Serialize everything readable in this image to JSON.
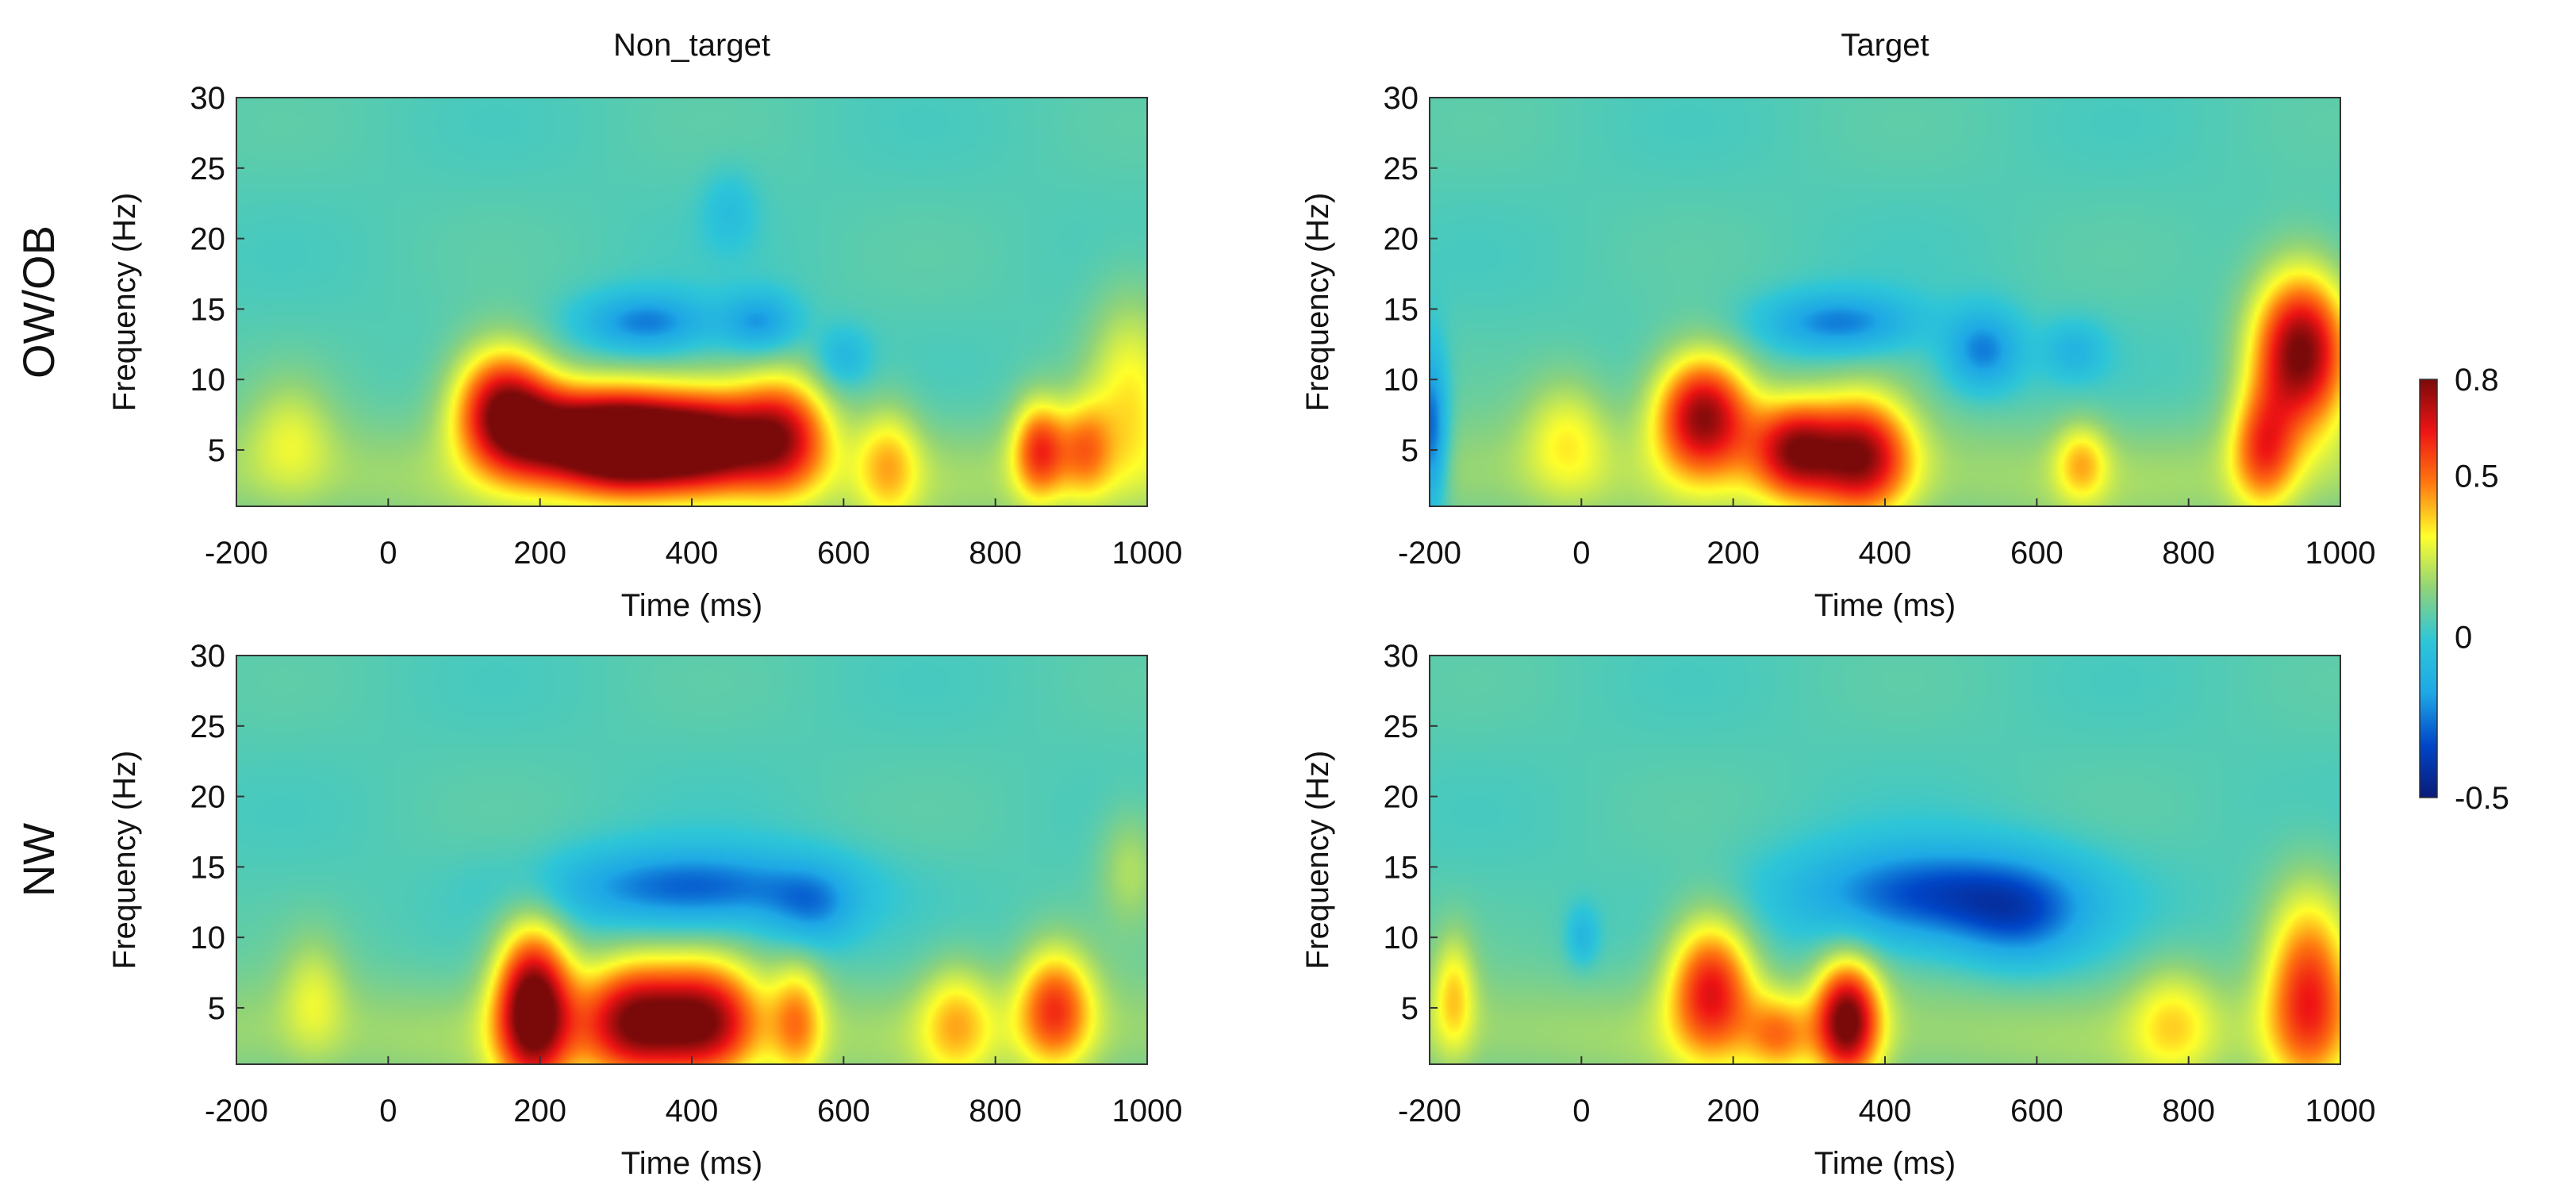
{
  "chart_data": {
    "type": "heatmap",
    "columns": [
      "Non_target",
      "Target"
    ],
    "rows": [
      "OW/OB",
      "NW"
    ],
    "xlabel": "Time (ms)",
    "ylabel": "Frequency (Hz)",
    "xlim": [
      -200,
      1000
    ],
    "ylim": [
      1,
      30
    ],
    "xticks": [
      -200,
      0,
      200,
      400,
      600,
      800,
      1000
    ],
    "yticks": [
      5,
      10,
      15,
      20,
      25,
      30
    ],
    "colorbar": {
      "ticks": [
        0.8,
        0.5,
        0,
        -0.5
      ],
      "range": [
        -0.5,
        0.8
      ],
      "colors": [
        "#0a1a78",
        "#0046c8",
        "#1ea8e6",
        "#2ec6d8",
        "#8fd37a",
        "#ffff2a",
        "#ff7a10",
        "#ef1414",
        "#7a0a0a"
      ]
    },
    "panels": [
      {
        "row": "OW/OB",
        "column": "Non_target",
        "blobs": [
          {
            "t": 150,
            "f": 8,
            "st": 45,
            "sf": 3,
            "a": 0.65
          },
          {
            "t": 230,
            "f": 6,
            "st": 60,
            "sf": 2.5,
            "a": 0.6
          },
          {
            "t": 320,
            "f": 5.5,
            "st": 55,
            "sf": 2.5,
            "a": 0.78
          },
          {
            "t": 420,
            "f": 5.5,
            "st": 55,
            "sf": 2.5,
            "a": 0.7
          },
          {
            "t": 520,
            "f": 6,
            "st": 45,
            "sf": 3,
            "a": 0.55
          },
          {
            "t": 340,
            "f": 14,
            "st": 60,
            "sf": 1.5,
            "a": -0.3
          },
          {
            "t": 490,
            "f": 14,
            "st": 35,
            "sf": 1.5,
            "a": -0.25
          },
          {
            "t": 600,
            "f": 11.5,
            "st": 25,
            "sf": 1.5,
            "a": -0.15
          },
          {
            "t": 450,
            "f": 22,
            "st": 25,
            "sf": 2,
            "a": -0.1
          },
          {
            "t": 860,
            "f": 5,
            "st": 25,
            "sf": 2.5,
            "a": 0.45
          },
          {
            "t": 920,
            "f": 5,
            "st": 25,
            "sf": 2.5,
            "a": 0.3
          },
          {
            "t": 660,
            "f": 4,
            "st": 30,
            "sf": 3,
            "a": 0.25
          },
          {
            "t": 980,
            "f": 9,
            "st": 40,
            "sf": 5,
            "a": 0.25
          },
          {
            "t": -130,
            "f": 6,
            "st": 40,
            "sf": 3,
            "a": 0.15
          }
        ]
      },
      {
        "row": "OW/OB",
        "column": "Target",
        "blobs": [
          {
            "t": 160,
            "f": 7.5,
            "st": 45,
            "sf": 3,
            "a": 0.7
          },
          {
            "t": 280,
            "f": 5,
            "st": 40,
            "sf": 2.5,
            "a": 0.58
          },
          {
            "t": 370,
            "f": 4.5,
            "st": 45,
            "sf": 3,
            "a": 0.62
          },
          {
            "t": 340,
            "f": 14,
            "st": 70,
            "sf": 1.5,
            "a": -0.3
          },
          {
            "t": 530,
            "f": 12,
            "st": 35,
            "sf": 2,
            "a": -0.3
          },
          {
            "t": 650,
            "f": 12,
            "st": 30,
            "sf": 1.5,
            "a": -0.15
          },
          {
            "t": 950,
            "f": 12,
            "st": 45,
            "sf": 4,
            "a": 0.75
          },
          {
            "t": 900,
            "f": 5,
            "st": 30,
            "sf": 3,
            "a": 0.4
          },
          {
            "t": -200,
            "f": 6,
            "st": 15,
            "sf": 4,
            "a": -0.4
          },
          {
            "t": 660,
            "f": 4,
            "st": 25,
            "sf": 2,
            "a": 0.25
          },
          {
            "t": -20,
            "f": 6,
            "st": 40,
            "sf": 3,
            "a": 0.2
          }
        ]
      },
      {
        "row": "NW",
        "column": "Non_target",
        "blobs": [
          {
            "t": 190,
            "f": 5,
            "st": 35,
            "sf": 4,
            "a": 0.8
          },
          {
            "t": 320,
            "f": 4,
            "st": 50,
            "sf": 3,
            "a": 0.6
          },
          {
            "t": 420,
            "f": 4,
            "st": 50,
            "sf": 3,
            "a": 0.6
          },
          {
            "t": 400,
            "f": 13.5,
            "st": 130,
            "sf": 2,
            "a": -0.35
          },
          {
            "t": 560,
            "f": 12,
            "st": 40,
            "sf": 2,
            "a": -0.2
          },
          {
            "t": 880,
            "f": 5,
            "st": 35,
            "sf": 3,
            "a": 0.45
          },
          {
            "t": 750,
            "f": 4,
            "st": 35,
            "sf": 3,
            "a": 0.25
          },
          {
            "t": 540,
            "f": 4,
            "st": 25,
            "sf": 3,
            "a": 0.3
          },
          {
            "t": -100,
            "f": 6,
            "st": 30,
            "sf": 3,
            "a": 0.15
          },
          {
            "t": 980,
            "f": 15,
            "st": 30,
            "sf": 3,
            "a": 0.15
          }
        ]
      },
      {
        "row": "NW",
        "column": "Target",
        "blobs": [
          {
            "t": 170,
            "f": 6.5,
            "st": 40,
            "sf": 3.5,
            "a": 0.55
          },
          {
            "t": 350,
            "f": 4,
            "st": 30,
            "sf": 3,
            "a": 0.7
          },
          {
            "t": 470,
            "f": 13,
            "st": 130,
            "sf": 2.5,
            "a": -0.4
          },
          {
            "t": 580,
            "f": 11,
            "st": 60,
            "sf": 2.5,
            "a": -0.2
          },
          {
            "t": 0,
            "f": 10,
            "st": 15,
            "sf": 1.5,
            "a": -0.15
          },
          {
            "t": 960,
            "f": 6,
            "st": 40,
            "sf": 5,
            "a": 0.5
          },
          {
            "t": -170,
            "f": 6,
            "st": 20,
            "sf": 3,
            "a": 0.25
          },
          {
            "t": 780,
            "f": 4,
            "st": 40,
            "sf": 3,
            "a": 0.2
          },
          {
            "t": 260,
            "f": 3,
            "st": 30,
            "sf": 2,
            "a": 0.3
          }
        ]
      }
    ]
  }
}
